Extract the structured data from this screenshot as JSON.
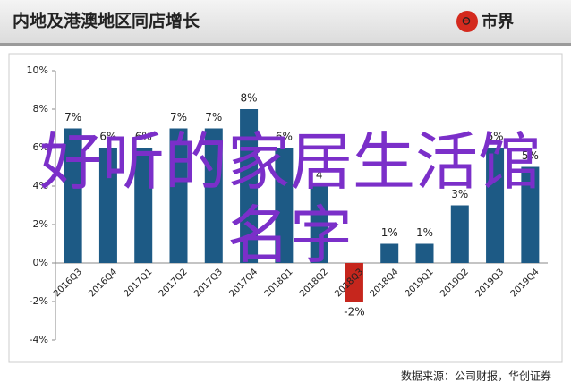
{
  "chart_data": {
    "type": "bar",
    "title": "内地及港澳地区同店增长",
    "logo": "市界",
    "source": "数据来源：公司财报，华创证券",
    "annotation": "好听的家居生活馆名字",
    "categories": [
      "2016Q3",
      "2016Q4",
      "2017Q1",
      "2017Q2",
      "2017Q3",
      "2017Q4",
      "2018Q1",
      "2018Q2",
      "2018Q3",
      "2018Q4",
      "2019Q1",
      "2019Q2",
      "2019Q3",
      "2019Q4"
    ],
    "values": [
      7,
      6,
      6,
      7,
      7,
      8,
      6,
      4,
      -2,
      1,
      1,
      3,
      6,
      5
    ],
    "value_labels": [
      "7%",
      "6%",
      "6%",
      "7%",
      "7%",
      "8%",
      "6%",
      "4",
      "-2%",
      "1%",
      "1%",
      "3%",
      "6%",
      "5%"
    ],
    "color": "#1d5a85",
    "negative_color": "#c6261d",
    "ylim": [
      -4,
      10
    ],
    "yticks": [
      {
        "value": -4,
        "label": "-4%"
      },
      {
        "value": -2,
        "label": "-2%"
      },
      {
        "value": 0,
        "label": "0%"
      },
      {
        "value": 2,
        "label": "2%"
      },
      {
        "value": 4,
        "label": "4%"
      },
      {
        "value": 6,
        "label": "6%"
      },
      {
        "value": 8,
        "label": "8%"
      },
      {
        "value": 10,
        "label": "10%"
      }
    ]
  }
}
